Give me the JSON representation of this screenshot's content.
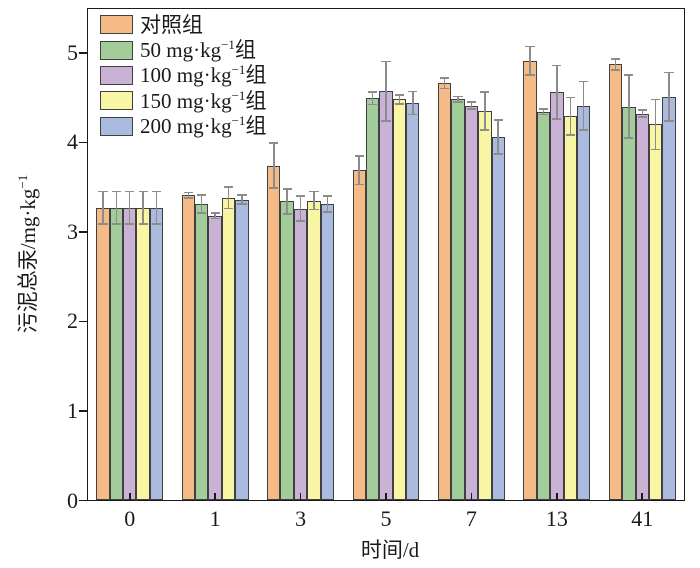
{
  "chart_data": {
    "type": "bar",
    "title": "",
    "xlabel": "时间/d",
    "ylabel": "污泥总汞/mg·kg⁻¹",
    "categories": [
      "0",
      "1",
      "3",
      "5",
      "7",
      "13",
      "41"
    ],
    "series": [
      {
        "name": "对照组",
        "color": "#F5BB86",
        "values": [
          3.27,
          3.41,
          3.74,
          3.69,
          4.66,
          4.91,
          4.87
        ],
        "errors": [
          0.18,
          0.03,
          0.25,
          0.16,
          0.06,
          0.16,
          0.06
        ]
      },
      {
        "name": "50 mg·kg⁻¹组",
        "color": "#A2CD9A",
        "values": [
          3.27,
          3.31,
          3.34,
          4.49,
          4.48,
          4.34,
          4.4
        ],
        "errors": [
          0.18,
          0.1,
          0.14,
          0.07,
          0.03,
          0.03,
          0.35
        ]
      },
      {
        "name": "100 mg·kg⁻¹组",
        "color": "#C9B2D5",
        "values": [
          3.27,
          3.18,
          3.26,
          4.57,
          4.41,
          4.56,
          4.32
        ],
        "errors": [
          0.18,
          0.03,
          0.14,
          0.33,
          0.04,
          0.3,
          0.04
        ]
      },
      {
        "name": "150 mg·kg⁻¹组",
        "color": "#F8F6A4",
        "values": [
          3.27,
          3.38,
          3.35,
          4.48,
          4.35,
          4.29,
          4.2
        ],
        "errors": [
          0.18,
          0.12,
          0.1,
          0.05,
          0.21,
          0.21,
          0.28
        ]
      },
      {
        "name": "200 mg·kg⁻¹组",
        "color": "#ABBADF",
        "values": [
          3.27,
          3.36,
          3.31,
          4.44,
          4.06,
          4.41,
          4.51
        ],
        "errors": [
          0.18,
          0.05,
          0.09,
          0.13,
          0.19,
          0.27,
          0.27
        ]
      }
    ],
    "ylim": [
      0,
      5.5
    ],
    "yticks": [
      0,
      1,
      2,
      3,
      4,
      5
    ],
    "legend_position": "top-left",
    "grid": false,
    "error_bars": true
  },
  "style": {
    "axis_color": "#1a1a1a",
    "bar_border_color": "#404040",
    "error_bar_color": "#8c8c8c",
    "background": "#ffffff"
  }
}
